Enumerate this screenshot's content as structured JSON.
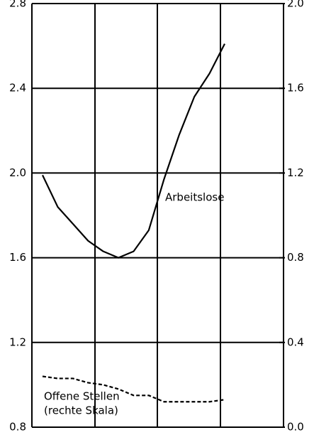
{
  "chart_data": {
    "type": "line",
    "categories": [
      null,
      null,
      null,
      null,
      null,
      null,
      null,
      null,
      null,
      null,
      null,
      null,
      null
    ],
    "series": [
      {
        "name": "Arbeitslose",
        "color": "#000000",
        "dash": false,
        "values": [
          1.99,
          1.84,
          1.76,
          1.68,
          1.63,
          1.6,
          1.63,
          1.73,
          1.97,
          2.18,
          2.36,
          2.47,
          2.61
        ]
      },
      {
        "name": "Offene Stellen",
        "color": "#000000",
        "dash": true,
        "axis": "y2",
        "values": [
          0.24,
          0.23,
          0.23,
          0.21,
          0.2,
          0.18,
          0.15,
          0.15,
          0.12,
          0.12,
          0.12,
          0.12,
          0.13
        ]
      }
    ],
    "annotation": "(rechte Skala)",
    "ylim": [
      0.8,
      2.8
    ],
    "yticks": [
      0.8,
      1.2,
      1.6,
      {
        "value": 2,
        "label": "2.0"
      },
      2.4,
      2.8
    ],
    "y2lim": [
      0,
      2
    ],
    "y2ticks": [
      {
        "value": 0,
        "label": "0.0"
      },
      0.4,
      0.8,
      1.2,
      1.6,
      {
        "value": 2,
        "label": "2.0"
      }
    ],
    "grid": true
  }
}
